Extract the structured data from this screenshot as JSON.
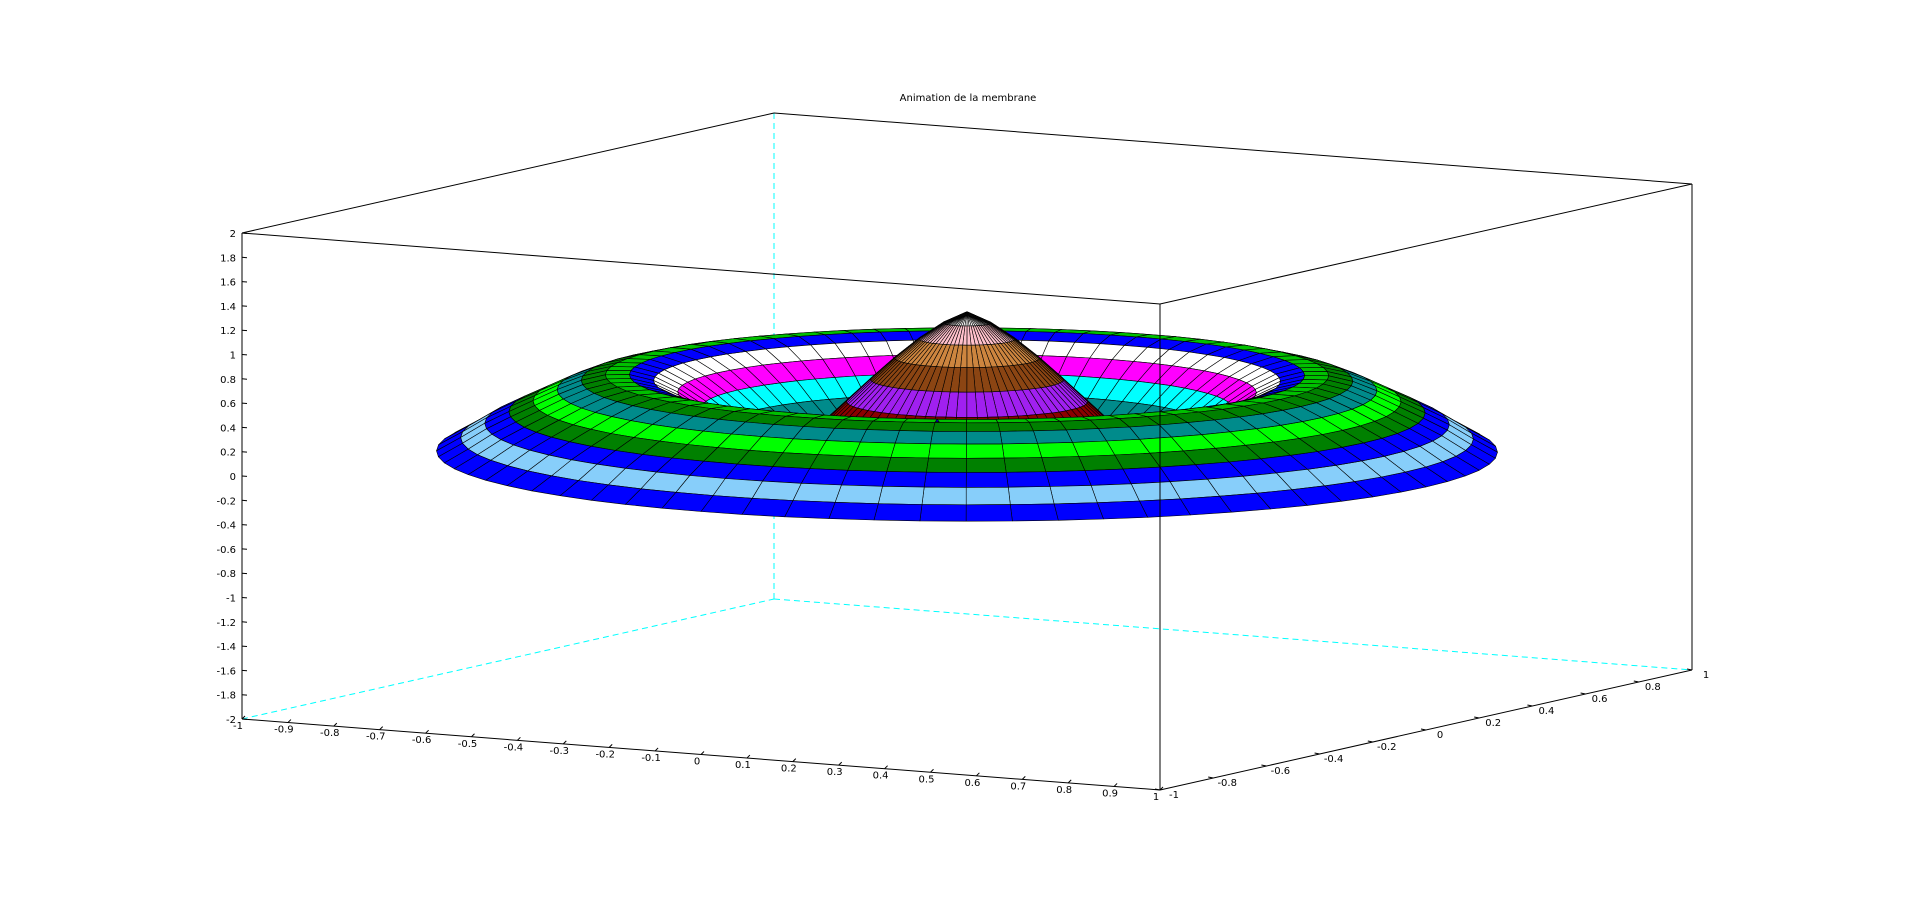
{
  "chart_data": {
    "type": "surface3d",
    "title": "Animation de la membrane",
    "xlabel": "",
    "ylabel": "",
    "zlabel": "",
    "xlim": [
      -1,
      1
    ],
    "ylim": [
      -1,
      1
    ],
    "zlim": [
      -2,
      2
    ],
    "grid": false,
    "x_ticks": [
      "-1",
      "-0.9",
      "-0.8",
      "-0.7",
      "-0.6",
      "-0.5",
      "-0.4",
      "-0.3",
      "-0.2",
      "-0.1",
      "0",
      "0.1",
      "0.2",
      "0.3",
      "0.4",
      "0.5",
      "0.6",
      "0.7",
      "0.8",
      "0.9",
      "1"
    ],
    "y_ticks": [
      "-1",
      "-0.8",
      "-0.6",
      "-0.4",
      "-0.2",
      "0",
      "0.2",
      "0.4",
      "0.6",
      "0.8",
      "1"
    ],
    "z_ticks": [
      "-2",
      "-1.8",
      "-1.6",
      "-1.4",
      "-1.2",
      "-1",
      "-0.8",
      "-0.6",
      "-0.4",
      "-0.2",
      "0",
      "0.2",
      "0.4",
      "0.6",
      "0.8",
      "1",
      "1.2",
      "1.4",
      "1.6",
      "1.8",
      "2"
    ],
    "surface": {
      "shape": "circular membrane",
      "radius": 1,
      "profile": [
        {
          "r": 0.0,
          "z": 1.15
        },
        {
          "r": 0.05,
          "z": 1.05
        },
        {
          "r": 0.1,
          "z": 0.9
        },
        {
          "r": 0.15,
          "z": 0.72
        },
        {
          "r": 0.2,
          "z": 0.52
        },
        {
          "r": 0.25,
          "z": 0.32
        },
        {
          "r": 0.3,
          "z": 0.12
        },
        {
          "r": 0.35,
          "z": 0.02
        },
        {
          "r": 0.4,
          "z": 0.06
        },
        {
          "r": 0.45,
          "z": 0.2
        },
        {
          "r": 0.5,
          "z": 0.36
        },
        {
          "r": 0.55,
          "z": 0.5
        },
        {
          "r": 0.6,
          "z": 0.6
        },
        {
          "r": 0.65,
          "z": 0.64
        },
        {
          "r": 0.7,
          "z": 0.62
        },
        {
          "r": 0.75,
          "z": 0.55
        },
        {
          "r": 0.8,
          "z": 0.45
        },
        {
          "r": 0.85,
          "z": 0.35
        },
        {
          "r": 0.9,
          "z": 0.25
        },
        {
          "r": 0.95,
          "z": 0.12
        },
        {
          "r": 1.0,
          "z": 0.0
        }
      ],
      "band_colors": [
        "#0000ff",
        "#87cefa",
        "#0000ff",
        "#008000",
        "#00ff00",
        "#008b8b",
        "#008000",
        "#00c000",
        "#0000ff",
        "#ffffff",
        "#ff00ff",
        "#00ffff",
        "#008b8b",
        "#00c000",
        "#0000ff",
        "#008b8b",
        "#8b0000",
        "#a020f0",
        "#8b4513",
        "#cd853f",
        "#ffc0cb",
        "#ffffff"
      ]
    },
    "colors": {
      "box": "#000000",
      "hidden_box": "#00ffff",
      "mesh": "#000000"
    }
  }
}
